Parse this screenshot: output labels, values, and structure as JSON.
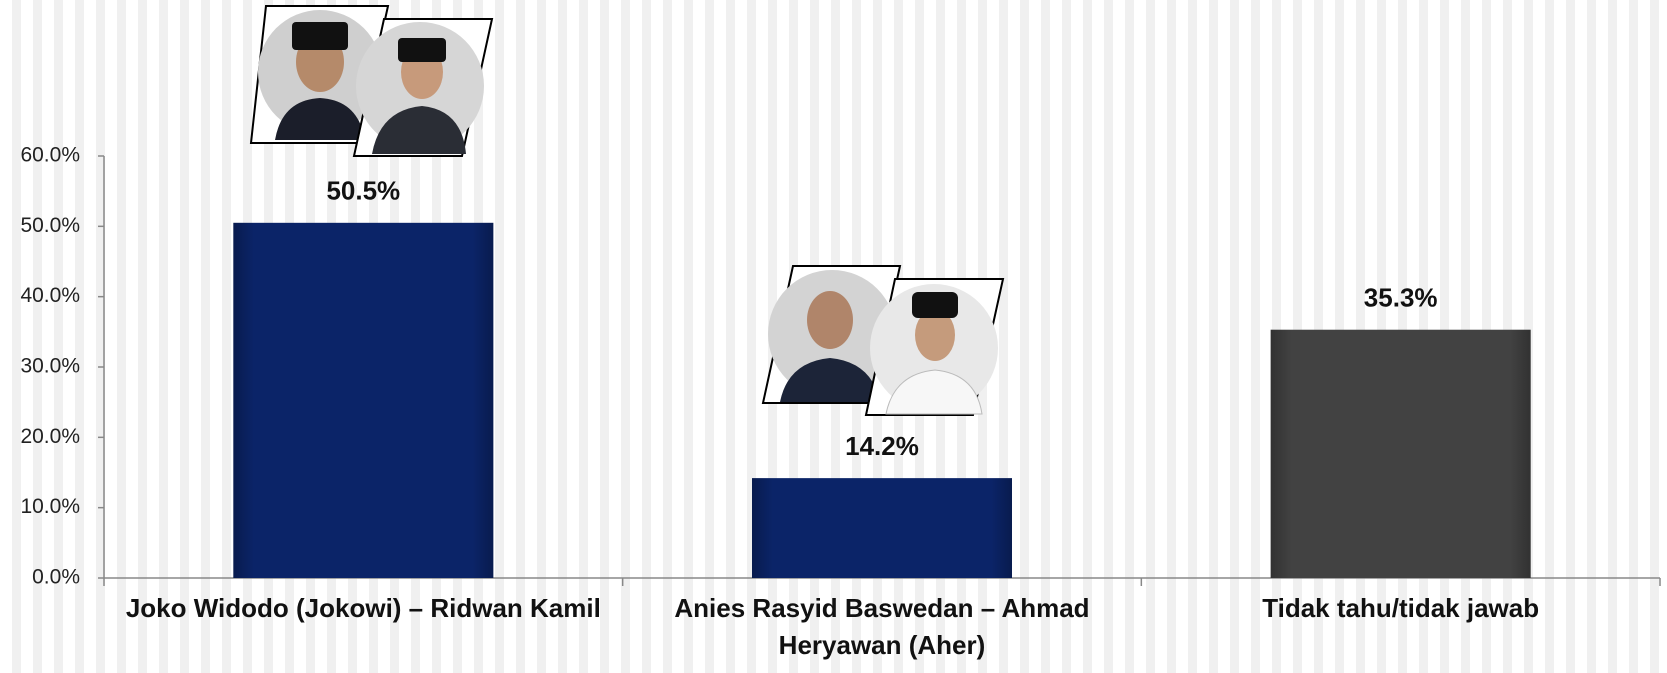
{
  "chart_data": {
    "type": "bar",
    "categories": [
      "Joko Widodo (Jokowi) – Ridwan Kamil",
      "Anies Rasyid Baswedan – Ahmad Heryawan (Aher)",
      "Tidak tahu/tidak jawab"
    ],
    "values": [
      50.5,
      14.2,
      35.3
    ],
    "value_labels": [
      "50.5%",
      "14.2%",
      "35.3%"
    ],
    "colors": [
      "#0b2468",
      "#0b2468",
      "#424242"
    ],
    "ylim": [
      0,
      60
    ],
    "yticks": [
      {
        "value": 0,
        "label": "0.0%"
      },
      {
        "value": 10,
        "label": "10.0%"
      },
      {
        "value": 20,
        "label": "20.0%"
      },
      {
        "value": 30,
        "label": "30.0%"
      },
      {
        "value": 40,
        "label": "40.0%"
      },
      {
        "value": 50,
        "label": "50.0%"
      },
      {
        "value": 60,
        "label": "60.0%"
      }
    ]
  }
}
